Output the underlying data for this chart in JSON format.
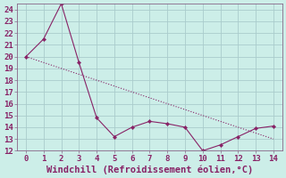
{
  "x": [
    0,
    1,
    2,
    3,
    4,
    5,
    6,
    7,
    8,
    9,
    10,
    11,
    12,
    13,
    14
  ],
  "y_line1": [
    20,
    21.5,
    24.5,
    19.5,
    14.8,
    13.2,
    14.0,
    14.5,
    14.3,
    14.0,
    12.0,
    12.5,
    13.2,
    13.9,
    14.1
  ],
  "y_line2": [
    20,
    19.5,
    19.0,
    18.5,
    18.0,
    17.5,
    17.0,
    16.5,
    16.0,
    15.5,
    15.0,
    14.5,
    14.0,
    13.5,
    13.0
  ],
  "line_color": "#882266",
  "bg_color": "#cceee8",
  "grid_color": "#aacccc",
  "spine_color": "#886688",
  "xlabel": "Windchill (Refroidissement éolien,°C)",
  "xlim": [
    -0.5,
    14.5
  ],
  "ylim": [
    12,
    24.5
  ],
  "yticks": [
    12,
    13,
    14,
    15,
    16,
    17,
    18,
    19,
    20,
    21,
    22,
    23,
    24
  ],
  "xticks": [
    0,
    1,
    2,
    3,
    4,
    5,
    6,
    7,
    8,
    9,
    10,
    11,
    12,
    13,
    14
  ],
  "xlabel_fontsize": 7.5,
  "tick_fontsize": 6.5
}
